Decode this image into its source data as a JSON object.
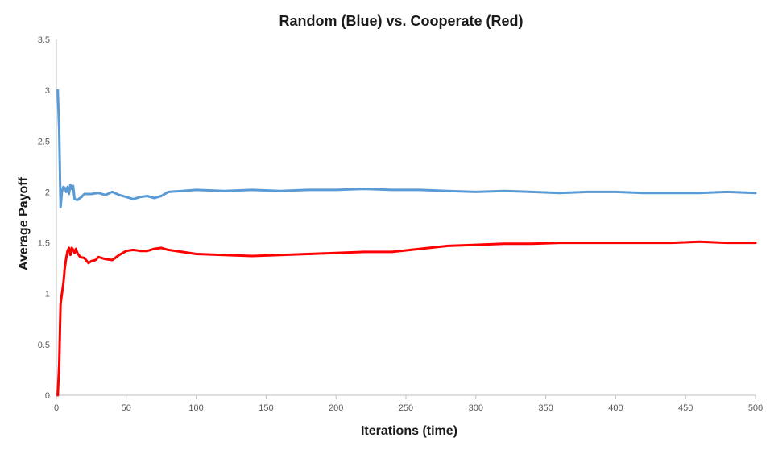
{
  "chart_data": {
    "type": "line",
    "title": "Random (Blue) vs. Cooperate (Red)",
    "xlabel": "Iterations (time)",
    "ylabel": "Average Payoff",
    "xlim": [
      0,
      500
    ],
    "ylim": [
      0,
      3.5
    ],
    "x_ticks": [
      "0",
      "50",
      "100",
      "150",
      "200",
      "250",
      "300",
      "350",
      "400",
      "450",
      "500"
    ],
    "y_ticks": [
      "0",
      "0.5",
      "1",
      "1.5",
      "2",
      "2.5",
      "3",
      "3.5"
    ],
    "grid": false,
    "legend": "none",
    "series": [
      {
        "color": "#5b9bd5",
        "points": [
          [
            1,
            3.0
          ],
          [
            2,
            2.6
          ],
          [
            3,
            1.85
          ],
          [
            4,
            2.0
          ],
          [
            5,
            2.05
          ],
          [
            6,
            2.04
          ],
          [
            7,
            2.0
          ],
          [
            8,
            2.05
          ],
          [
            9,
            1.98
          ],
          [
            10,
            2.07
          ],
          [
            11,
            2.03
          ],
          [
            12,
            2.06
          ],
          [
            13,
            1.93
          ],
          [
            15,
            1.92
          ],
          [
            18,
            1.95
          ],
          [
            20,
            1.98
          ],
          [
            25,
            1.98
          ],
          [
            30,
            1.99
          ],
          [
            35,
            1.97
          ],
          [
            40,
            2.0
          ],
          [
            45,
            1.97
          ],
          [
            50,
            1.95
          ],
          [
            55,
            1.93
          ],
          [
            60,
            1.95
          ],
          [
            65,
            1.96
          ],
          [
            70,
            1.94
          ],
          [
            75,
            1.96
          ],
          [
            80,
            2.0
          ],
          [
            90,
            2.01
          ],
          [
            100,
            2.02
          ],
          [
            120,
            2.01
          ],
          [
            140,
            2.02
          ],
          [
            160,
            2.01
          ],
          [
            180,
            2.02
          ],
          [
            200,
            2.02
          ],
          [
            220,
            2.03
          ],
          [
            240,
            2.02
          ],
          [
            260,
            2.02
          ],
          [
            280,
            2.01
          ],
          [
            300,
            2.0
          ],
          [
            320,
            2.01
          ],
          [
            340,
            2.0
          ],
          [
            360,
            1.99
          ],
          [
            380,
            2.0
          ],
          [
            400,
            2.0
          ],
          [
            420,
            1.99
          ],
          [
            440,
            1.99
          ],
          [
            460,
            1.99
          ],
          [
            480,
            2.0
          ],
          [
            500,
            1.99
          ]
        ]
      },
      {
        "color": "#ff0000",
        "points": [
          [
            1,
            0.0
          ],
          [
            2,
            0.3
          ],
          [
            3,
            0.9
          ],
          [
            4,
            1.0
          ],
          [
            5,
            1.1
          ],
          [
            6,
            1.25
          ],
          [
            7,
            1.35
          ],
          [
            8,
            1.42
          ],
          [
            9,
            1.45
          ],
          [
            10,
            1.38
          ],
          [
            11,
            1.45
          ],
          [
            12,
            1.43
          ],
          [
            13,
            1.4
          ],
          [
            14,
            1.44
          ],
          [
            15,
            1.4
          ],
          [
            17,
            1.36
          ],
          [
            20,
            1.35
          ],
          [
            23,
            1.3
          ],
          [
            25,
            1.32
          ],
          [
            28,
            1.33
          ],
          [
            30,
            1.36
          ],
          [
            35,
            1.34
          ],
          [
            40,
            1.33
          ],
          [
            45,
            1.38
          ],
          [
            50,
            1.42
          ],
          [
            55,
            1.43
          ],
          [
            60,
            1.42
          ],
          [
            65,
            1.42
          ],
          [
            70,
            1.44
          ],
          [
            75,
            1.45
          ],
          [
            80,
            1.43
          ],
          [
            90,
            1.41
          ],
          [
            100,
            1.39
          ],
          [
            120,
            1.38
          ],
          [
            140,
            1.37
          ],
          [
            160,
            1.38
          ],
          [
            180,
            1.39
          ],
          [
            200,
            1.4
          ],
          [
            220,
            1.41
          ],
          [
            240,
            1.41
          ],
          [
            260,
            1.44
          ],
          [
            280,
            1.47
          ],
          [
            300,
            1.48
          ],
          [
            320,
            1.49
          ],
          [
            340,
            1.49
          ],
          [
            360,
            1.5
          ],
          [
            380,
            1.5
          ],
          [
            400,
            1.5
          ],
          [
            420,
            1.5
          ],
          [
            440,
            1.5
          ],
          [
            460,
            1.51
          ],
          [
            480,
            1.5
          ],
          [
            500,
            1.5
          ]
        ]
      }
    ]
  }
}
